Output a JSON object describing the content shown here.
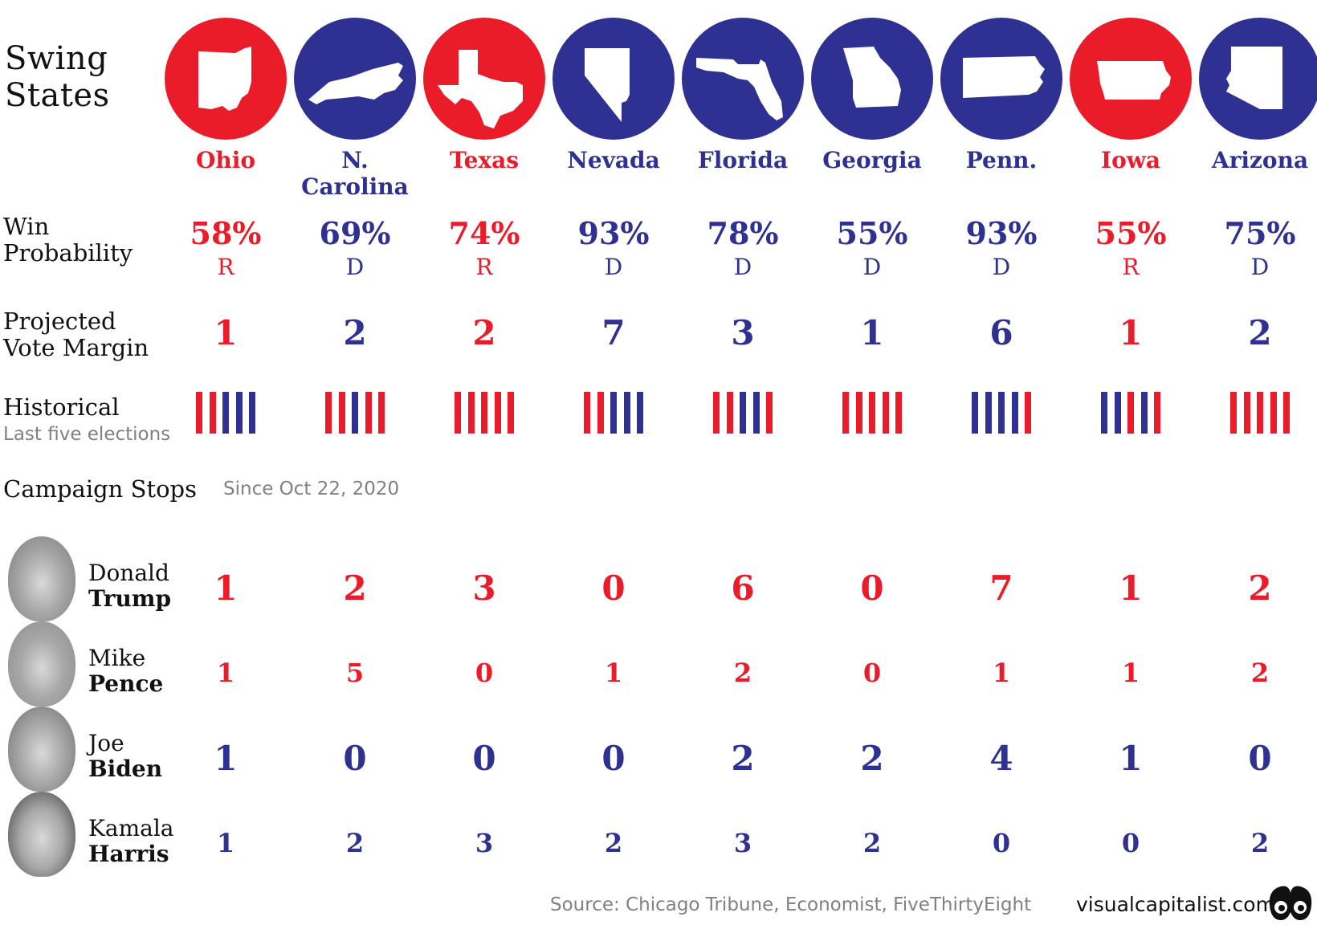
{
  "title": [
    "Swing",
    "States"
  ],
  "colors": {
    "red": "#ea1c2a",
    "blue": "#2e3192"
  },
  "states": [
    {
      "name": "Ohio",
      "party": "R",
      "icon": "ohio-icon"
    },
    {
      "name": "N. Carolina",
      "party": "D",
      "icon": "north-carolina-icon"
    },
    {
      "name": "Texas",
      "party": "R",
      "icon": "texas-icon"
    },
    {
      "name": "Nevada",
      "party": "D",
      "icon": "nevada-icon"
    },
    {
      "name": "Florida",
      "party": "D",
      "icon": "florida-icon"
    },
    {
      "name": "Georgia",
      "party": "D",
      "icon": "georgia-icon"
    },
    {
      "name": "Penn.",
      "party": "D",
      "icon": "pennsylvania-icon"
    },
    {
      "name": "Iowa",
      "party": "R",
      "icon": "iowa-icon"
    },
    {
      "name": "Arizona",
      "party": "D",
      "icon": "arizona-icon"
    }
  ],
  "rows": {
    "win_probability": {
      "label": [
        "Win",
        "Probability"
      ],
      "values": [
        "58%",
        "69%",
        "74%",
        "93%",
        "78%",
        "55%",
        "93%",
        "55%",
        "75%"
      ]
    },
    "vote_margin": {
      "label": [
        "Projected",
        "Vote Margin"
      ],
      "values": [
        "1",
        "2",
        "2",
        "7",
        "3",
        "1",
        "6",
        "1",
        "2"
      ]
    },
    "historical": {
      "label": "Historical",
      "sublabel": "Last five elections",
      "values": [
        [
          "R",
          "R",
          "B",
          "B",
          "B"
        ],
        [
          "R",
          "R",
          "B",
          "R",
          "R"
        ],
        [
          "R",
          "R",
          "R",
          "R",
          "R"
        ],
        [
          "R",
          "R",
          "B",
          "B",
          "B"
        ],
        [
          "R",
          "R",
          "B",
          "B",
          "R"
        ],
        [
          "R",
          "R",
          "R",
          "R",
          "R"
        ],
        [
          "B",
          "B",
          "B",
          "B",
          "R"
        ],
        [
          "B",
          "B",
          "R",
          "B",
          "R"
        ],
        [
          "R",
          "R",
          "R",
          "R",
          "R"
        ]
      ]
    }
  },
  "campaign": {
    "label": "Campaign Stops",
    "since": "Since Oct 22, 2020",
    "people": [
      {
        "first": "Donald",
        "last": "Trump",
        "party": "R",
        "stops": [
          "1",
          "2",
          "3",
          "0",
          "6",
          "0",
          "7",
          "1",
          "2"
        ]
      },
      {
        "first": "Mike",
        "last": "Pence",
        "party": "R",
        "stops": [
          "1",
          "5",
          "0",
          "1",
          "2",
          "0",
          "1",
          "1",
          "2"
        ]
      },
      {
        "first": "Joe",
        "last": "Biden",
        "party": "D",
        "stops": [
          "1",
          "0",
          "0",
          "0",
          "2",
          "2",
          "4",
          "1",
          "0"
        ]
      },
      {
        "first": "Kamala",
        "last": "Harris",
        "party": "D",
        "stops": [
          "1",
          "2",
          "3",
          "2",
          "3",
          "2",
          "0",
          "0",
          "2"
        ]
      }
    ]
  },
  "footer": {
    "source": "Source: Chicago Tribune, Economist, FiveThirtyEight",
    "brand": "visualcapitalist.com"
  }
}
